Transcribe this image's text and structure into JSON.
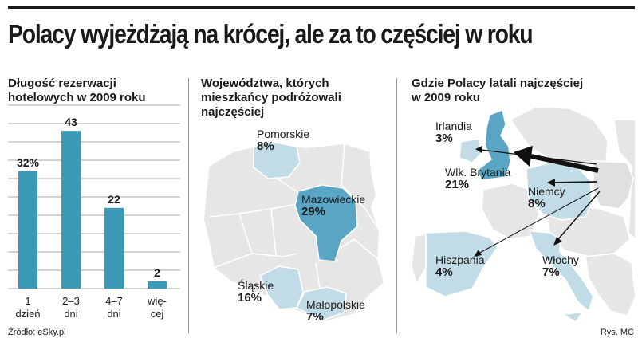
{
  "headline": "Polacy wyjeżdżają na krócej, ale za to częściej w roku",
  "source": "Źródło: eSky.pl",
  "credit": "Rys. MC",
  "colors": {
    "bar": "#3b9ab7",
    "highlight": "#5aa4c4",
    "light": "#c2dce7",
    "land": "#e6e6e6",
    "border": "#ffffff"
  },
  "panel1": {
    "title_line1": "Długość rezerwacji",
    "title_line2": "hotelowych w 2009 roku"
  },
  "panel2": {
    "title_line1": "Województwa, których",
    "title_line2": "mieszkańcy podróżowali",
    "title_line3": "najczęściej"
  },
  "panel3": {
    "title_line1": "Gdzie Polacy latali najczęściej",
    "title_line2": "w 2009 roku"
  },
  "regions": [
    {
      "name": "Pomorskie",
      "value": "8%"
    },
    {
      "name": "Mazowieckie",
      "value": "29%"
    },
    {
      "name": "Śląskie",
      "value": "16%"
    },
    {
      "name": "Małopolskie",
      "value": "7%"
    }
  ],
  "destinations": [
    {
      "name": "Irlandia",
      "value": "3%"
    },
    {
      "name": "Wlk. Brytania",
      "value": "21%"
    },
    {
      "name": "Niemcy",
      "value": "8%"
    },
    {
      "name": "Hiszpania",
      "value": "4%"
    },
    {
      "name": "Włochy",
      "value": "7%"
    }
  ],
  "chart_data": {
    "type": "bar",
    "title": "Długość rezerwacji hotelowych w 2009 roku",
    "categories": [
      [
        "1",
        "dzień"
      ],
      [
        "2–3",
        "dni"
      ],
      [
        "4–7",
        "dni"
      ],
      [
        "wię-",
        "cej"
      ]
    ],
    "values": [
      32,
      43,
      22,
      2
    ],
    "value_labels": [
      "32%",
      "43",
      "22",
      "2"
    ],
    "ylim": [
      0,
      50
    ],
    "grid": true
  }
}
